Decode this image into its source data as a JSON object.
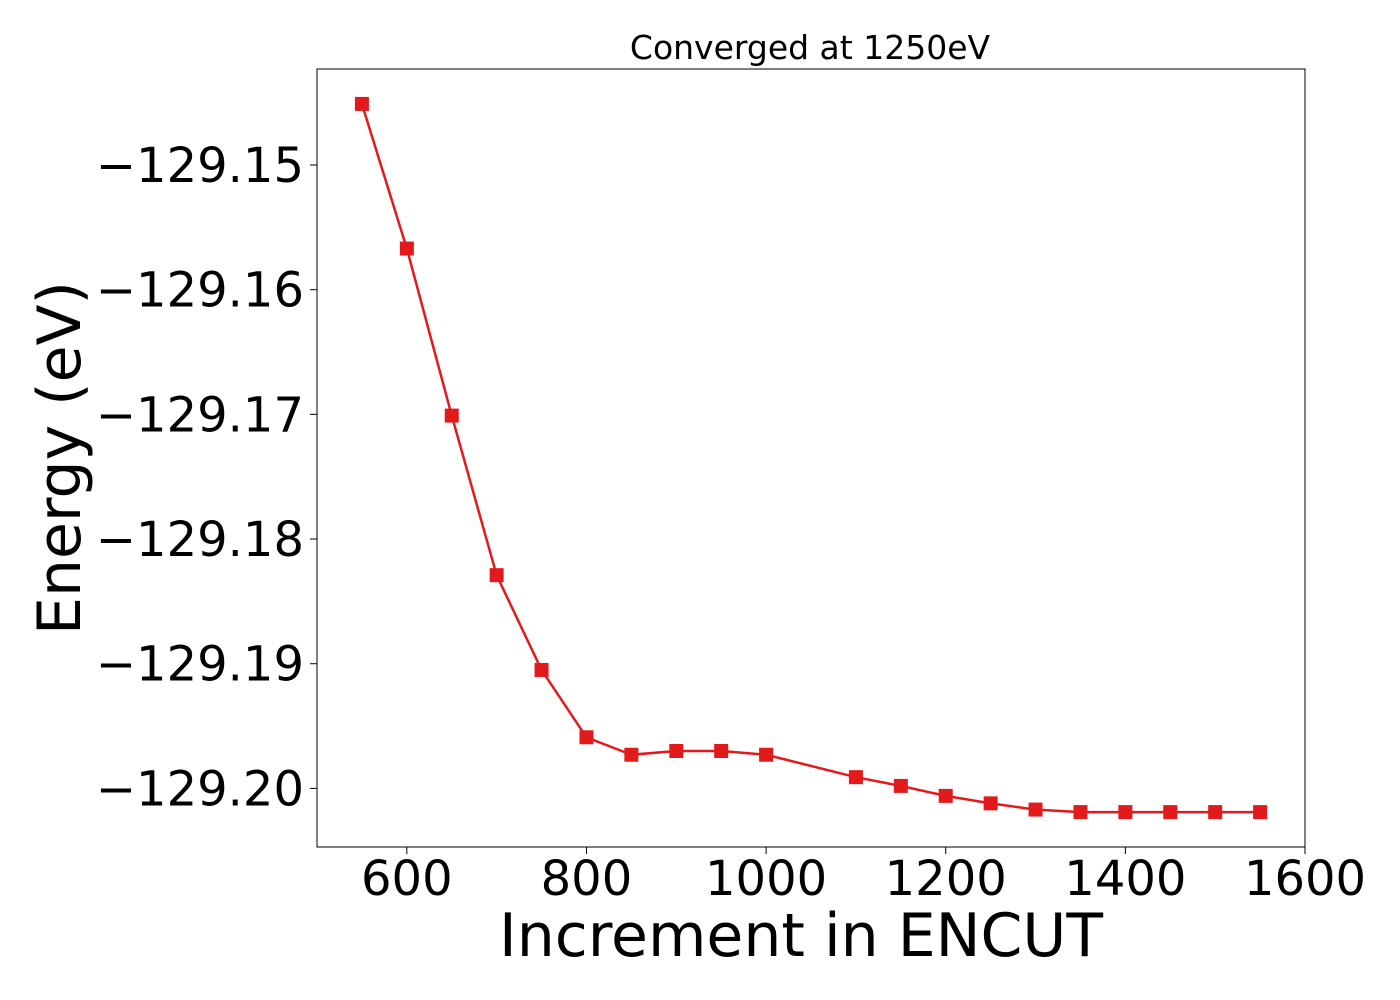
{
  "chart_data": {
    "type": "line",
    "title": "Converged at 1250eV",
    "xlabel": "Increment in ENCUT",
    "ylabel": "Energy (eV)",
    "xlim": [
      500,
      1600
    ],
    "ylim": [
      -129.2047,
      -129.1423
    ],
    "x_ticks": [
      600,
      800,
      1000,
      1200,
      1400,
      1600
    ],
    "x_tick_labels": [
      "600",
      "800",
      "1000",
      "1200",
      "1400",
      "1600"
    ],
    "y_ticks": [
      -129.15,
      -129.16,
      -129.17,
      -129.18,
      -129.19,
      -129.2
    ],
    "y_tick_labels": [
      "−129.15",
      "−129.16",
      "−129.17",
      "−129.18",
      "−129.19",
      "−129.20"
    ],
    "grid": false,
    "legend": "none",
    "series": [
      {
        "color": "#e31a1c",
        "marker": "square",
        "points": [
          {
            "x": 550,
            "y": -129.1451
          },
          {
            "x": 600,
            "y": -129.1567
          },
          {
            "x": 650,
            "y": -129.1701
          },
          {
            "x": 700,
            "y": -129.1829
          },
          {
            "x": 750,
            "y": -129.1905
          },
          {
            "x": 800,
            "y": -129.1959
          },
          {
            "x": 850,
            "y": -129.1973
          },
          {
            "x": 900,
            "y": -129.197
          },
          {
            "x": 950,
            "y": -129.197
          },
          {
            "x": 1000,
            "y": -129.1973
          },
          {
            "x": 1100,
            "y": -129.1991
          },
          {
            "x": 1150,
            "y": -129.1998
          },
          {
            "x": 1200,
            "y": -129.2006
          },
          {
            "x": 1250,
            "y": -129.2012
          },
          {
            "x": 1300,
            "y": -129.2017
          },
          {
            "x": 1350,
            "y": -129.2019
          },
          {
            "x": 1400,
            "y": -129.2019
          },
          {
            "x": 1450,
            "y": -129.2019
          },
          {
            "x": 1500,
            "y": -129.2019
          },
          {
            "x": 1550,
            "y": -129.2019
          }
        ]
      }
    ]
  }
}
